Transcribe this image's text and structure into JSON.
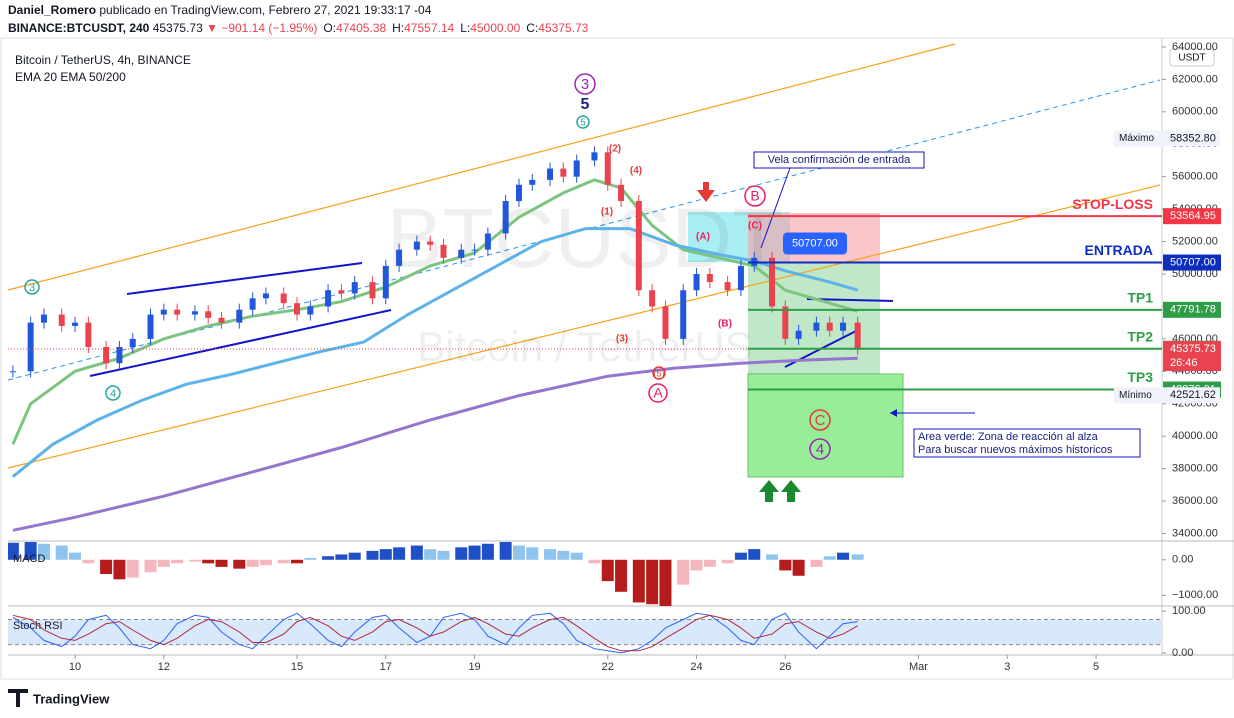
{
  "header": {
    "author": "Daniel_Romero",
    "published": "publicado en TradingView.com, Febrero 27, 2021 19:33:17 -04",
    "symbol": "BINANCE:BTCUSDT, 240",
    "price": "45375.73",
    "change": "▼ −901.14 (−1.95%)",
    "ohlc": [
      {
        "label": "O:",
        "value": "47405.38"
      },
      {
        "label": "H:",
        "value": "47557.14"
      },
      {
        "label": "L:",
        "value": "45000.00"
      },
      {
        "label": "C:",
        "value": "45375.73"
      }
    ]
  },
  "footer": "TradingView",
  "chart_data": {
    "type": "candlestick",
    "title": "Bitcoin / TetherUS, 4h, BINANCE",
    "subtitle": "EMA 20 EMA 50/200",
    "currency": "USDT",
    "watermark": [
      "BTCUSDT",
      "Bitcoin / TetherUS"
    ],
    "up_color": "#2157d8",
    "down_color": "#e8434f",
    "x": [
      8.6,
      9,
      9.3,
      9.7,
      10,
      10.3,
      10.7,
      11,
      11.3,
      11.7,
      12,
      12.3,
      12.7,
      13,
      13.3,
      13.7,
      14,
      14.3,
      14.7,
      15,
      15.3,
      15.7,
      16,
      16.3,
      16.7,
      17,
      17.3,
      17.7,
      18,
      18.3,
      18.7,
      19,
      19.3,
      19.7,
      20,
      20.3,
      20.7,
      21,
      21.3,
      21.7,
      22,
      22.3,
      22.7,
      23,
      23.3,
      23.7,
      24,
      24.3,
      24.7,
      25,
      25.3,
      25.7,
      26,
      26.3,
      26.7,
      27,
      27.3,
      27.63
    ],
    "values": [
      44000,
      47000,
      47500,
      46800,
      47000,
      45500,
      44500,
      45500,
      46000,
      47500,
      47800,
      47500,
      47700,
      47300,
      47000,
      47800,
      48500,
      48800,
      48200,
      47500,
      48000,
      49000,
      48800,
      49500,
      48500,
      50500,
      51500,
      52000,
      51800,
      51000,
      51500,
      51500,
      52500,
      54500,
      55500,
      55800,
      56500,
      56000,
      57000,
      57500,
      55500,
      54500,
      49000,
      48000,
      46000,
      49000,
      50000,
      49500,
      49000,
      50500,
      51000,
      48000,
      46000,
      46500,
      47000,
      46500,
      47000,
      45375.73
    ],
    "countdown": "26:46",
    "xlim": [
      8.49,
      34.44
    ],
    "ylim": [
      33600,
      64550
    ],
    "xticks": [
      10,
      12,
      15,
      17,
      19,
      22,
      24,
      26,
      {
        "value": 29,
        "label": "Mar"
      },
      {
        "value": 31,
        "label": "3"
      },
      {
        "value": 33,
        "label": "5"
      }
    ],
    "yticks": [
      {
        "value": 34000,
        "label": "34000.00"
      },
      {
        "value": 36000,
        "label": "36000.00"
      },
      {
        "value": 38000,
        "label": "38000.00"
      },
      {
        "value": 40000,
        "label": "40000.00"
      },
      {
        "value": 42000,
        "label": "42000.00"
      },
      {
        "value": 44000,
        "label": "44000.00"
      },
      {
        "value": 46000,
        "label": "46000.00"
      },
      {
        "value": 48000,
        "label": "48000.00"
      },
      {
        "value": 50000,
        "label": "50000.00"
      },
      {
        "value": 52000,
        "label": "52000.00"
      },
      {
        "value": 54000,
        "label": "54000.00"
      },
      {
        "value": 56000,
        "label": "56000.00"
      },
      {
        "value": 58000,
        "label": "58000.00"
      },
      {
        "value": 60000,
        "label": "60000.00"
      },
      {
        "value": 62000,
        "label": "62000.00"
      },
      {
        "value": 64000,
        "label": "64000.00"
      }
    ],
    "lines": [
      {
        "color": "#7cc47f",
        "x": [
          8.6,
          9,
          10,
          11,
          12,
          13,
          14,
          15,
          16,
          17,
          18,
          19,
          20,
          21,
          21.7,
          22.3,
          23,
          23.7,
          24.5,
          25.3,
          26,
          27,
          27.63
        ],
        "values": [
          39500,
          42000,
          44000,
          44800,
          46000,
          46800,
          47400,
          47800,
          48300,
          49200,
          50500,
          51300,
          53500,
          55000,
          55800,
          55300,
          53000,
          51500,
          51000,
          50500,
          49000,
          48200,
          47700
        ]
      },
      {
        "color": "#5db3e8",
        "x": [
          8.6,
          9.5,
          10.5,
          11.5,
          12.5,
          13.5,
          14.5,
          15.5,
          16.5,
          17.5,
          18.5,
          19.5,
          20.5,
          21.5,
          22.5,
          23.5,
          24.5,
          25.3,
          26,
          27,
          27.63
        ],
        "values": [
          37500,
          39500,
          41000,
          42200,
          43200,
          43800,
          44500,
          45200,
          45800,
          47500,
          49000,
          50500,
          52000,
          52800,
          52800,
          51800,
          51200,
          50800,
          50200,
          49500,
          49000
        ]
      },
      {
        "color": "#9575cd",
        "x": [
          8.6,
          10,
          12,
          14,
          16,
          18,
          20,
          22,
          23.5,
          25,
          26.5,
          27.63
        ],
        "values": [
          34200,
          35000,
          36300,
          37800,
          39300,
          41000,
          42500,
          43700,
          44200,
          44500,
          44700,
          44800
        ]
      }
    ],
    "levels": [
      {
        "label": "STOP-LOSS",
        "value": 53564.95,
        "color": "#f23645"
      },
      {
        "label": "ENTRADA",
        "value": 50707,
        "value_label": "50707.00",
        "color": "#0d2dbf"
      },
      {
        "label": "TP1",
        "value": 47791.78,
        "color": "#2e9e46"
      },
      {
        "label": "TP2",
        "value": 45391.06,
        "color": "#2e9e46"
      },
      {
        "label": "TP3",
        "value": 42876.01,
        "color": "#2e9e46"
      }
    ],
    "extremes": [
      {
        "label": "Máximo",
        "value": 58352.8,
        "value_label": "58352.80"
      },
      {
        "label": "Mínimo",
        "value": 42521.62
      }
    ],
    "wave_labels": [
      {
        "text": "3",
        "color": "#9c27b0"
      },
      {
        "text": "5",
        "color": "#1a237e"
      },
      {
        "text": "5",
        "color": "#26a69a"
      },
      {
        "text": "(2)",
        "color": "#e53935"
      },
      {
        "text": "(4)",
        "color": "#e53935"
      },
      {
        "text": "(1)",
        "color": "#e53935"
      },
      {
        "text": "(3)",
        "color": "#e53935"
      },
      {
        "text": "(5)",
        "color": "#e53935"
      },
      {
        "text": "A",
        "color": "#e91e63"
      },
      {
        "text": "(A)",
        "color": "#e91e63"
      },
      {
        "text": "(B)",
        "color": "#e91e63"
      },
      {
        "text": "(C)",
        "color": "#e91e63"
      },
      {
        "text": "B",
        "color": "#e91e63"
      },
      {
        "text": "3",
        "color": "#26a69a"
      },
      {
        "text": "4",
        "color": "#26a69a"
      },
      {
        "text": "C",
        "color": "#e53935"
      },
      {
        "text": "4",
        "color": "#9c27b0"
      }
    ],
    "notes": {
      "entry_candle": "Vela confirmación de entrada",
      "area_line1": "Area verde: Zona de reacción al alza",
      "area_line2": "Para buscar nuevos máximos historicos"
    },
    "macd": {
      "title": "MACD",
      "ylim": [
        -1300,
        500
      ],
      "yticks": [
        {
          "value": 0,
          "label": "0.00"
        },
        {
          "value": -1000,
          "label": "−1000.00"
        }
      ],
      "pos_color": "#1e50c8",
      "neg_color": "#b71c1c",
      "values": [
        480,
        500,
        450,
        400,
        200,
        -100,
        -400,
        -550,
        -500,
        -350,
        -200,
        -100,
        -50,
        -100,
        -200,
        -250,
        -200,
        -150,
        -100,
        -100,
        50,
        100,
        150,
        200,
        250,
        300,
        350,
        400,
        300,
        250,
        350,
        400,
        450,
        500,
        400,
        350,
        300,
        250,
        200,
        -100,
        -600,
        -900,
        -1200,
        -1250,
        -1300,
        -700,
        -300,
        -200,
        -100,
        200,
        300,
        150,
        -300,
        -450,
        -200,
        100,
        200,
        150
      ]
    },
    "stoch": {
      "title": "Stoch RSI",
      "ylim": [
        -5,
        110
      ],
      "yticks": [
        {
          "value": 100,
          "label": "100.00"
        },
        {
          "value": 0,
          "label": "0.00"
        }
      ],
      "bands": [
        20,
        80
      ],
      "k": {
        "color": "#2962ff",
        "values": [
          85,
          60,
          30,
          15,
          40,
          80,
          90,
          60,
          20,
          10,
          30,
          70,
          90,
          85,
          50,
          20,
          10,
          40,
          80,
          95,
          70,
          30,
          15,
          50,
          85,
          90,
          60,
          25,
          40,
          85,
          95,
          80,
          40,
          20,
          60,
          90,
          95,
          70,
          30,
          10,
          5,
          0,
          10,
          30,
          60,
          80,
          95,
          90,
          60,
          30,
          20,
          80,
          95,
          50,
          10,
          40,
          70,
          75
        ]
      },
      "d": {
        "color": "#b2283e",
        "values": [
          90,
          80,
          55,
          35,
          30,
          45,
          70,
          75,
          55,
          30,
          20,
          35,
          65,
          80,
          75,
          50,
          25,
          25,
          45,
          75,
          85,
          65,
          40,
          30,
          50,
          75,
          80,
          60,
          40,
          50,
          75,
          85,
          70,
          45,
          40,
          60,
          80,
          85,
          65,
          35,
          15,
          5,
          5,
          15,
          35,
          60,
          80,
          90,
          80,
          60,
          35,
          45,
          70,
          75,
          50,
          35,
          45,
          65
        ]
      }
    }
  }
}
